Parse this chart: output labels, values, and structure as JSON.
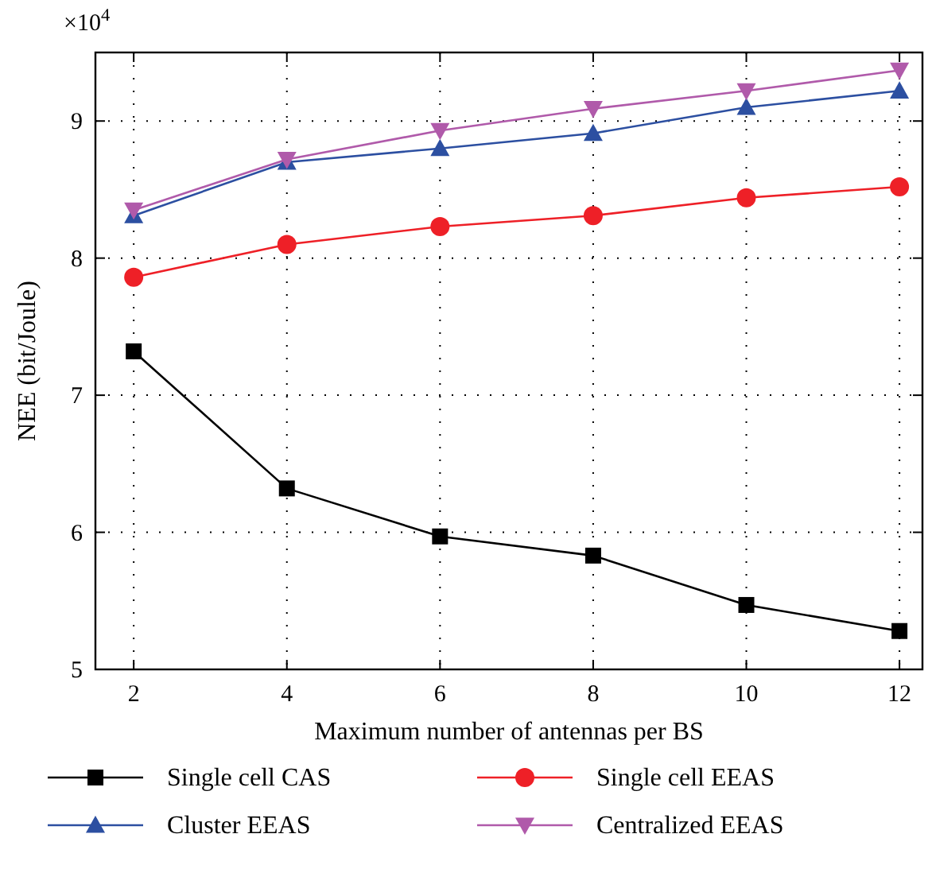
{
  "chart_data": {
    "type": "line",
    "xlabel": "Maximum number of antennas per BS",
    "ylabel": "NEE (bit/Joule)",
    "annotations": [
      "×10$^{4}$"
    ],
    "x": [
      2,
      4,
      6,
      8,
      10,
      12
    ],
    "xlim": [
      1.5,
      12.3
    ],
    "xticks": [
      2,
      4,
      6,
      8,
      10,
      12
    ],
    "ylim": [
      5,
      9.5
    ],
    "yticks": [
      5,
      6,
      7,
      8,
      9
    ],
    "grid": true,
    "legend": "bottom",
    "line_style": "solid",
    "series": [
      {
        "name": "Single cell CAS",
        "color": "#000000",
        "marker": "square",
        "values": [
          7.32,
          6.32,
          5.97,
          5.83,
          5.47,
          5.28
        ]
      },
      {
        "name": "Single cell EEAS",
        "color": "#ee2027",
        "marker": "circle",
        "values": [
          7.86,
          8.1,
          8.23,
          8.31,
          8.44,
          8.52
        ]
      },
      {
        "name": "Cluster EEAS",
        "color": "#2c4fa1",
        "marker": "triangle",
        "values": [
          8.31,
          8.7,
          8.8,
          8.91,
          9.1,
          9.22
        ]
      },
      {
        "name": "Centralized EEAS",
        "color": "#b05aaa",
        "marker": "triangle-down",
        "values": [
          8.35,
          8.72,
          8.93,
          9.09,
          9.22,
          9.37
        ]
      }
    ]
  }
}
